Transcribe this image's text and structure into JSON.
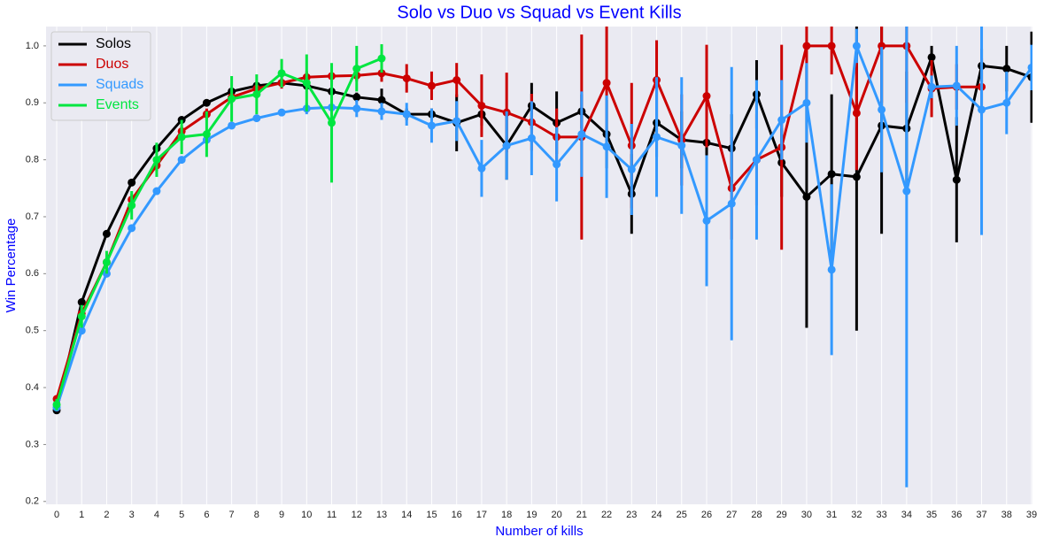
{
  "chart_data": {
    "type": "pointplot",
    "title": "Solo vs Duo vs Squad vs Event Kills",
    "x_label": "Number of kills",
    "y_label": "Win Percentage",
    "categories": [
      "0",
      "1",
      "2",
      "3",
      "4",
      "5",
      "6",
      "7",
      "8",
      "9",
      "10",
      "11",
      "12",
      "13",
      "14",
      "15",
      "16",
      "17",
      "18",
      "19",
      "20",
      "21",
      "22",
      "23",
      "24",
      "25",
      "26",
      "27",
      "28",
      "29",
      "30",
      "31",
      "32",
      "33",
      "34",
      "35",
      "36",
      "37",
      "38",
      "39"
    ],
    "ylim": [
      0.195,
      1.034
    ],
    "yticks": [
      0.2,
      0.3,
      0.4,
      0.5,
      0.6,
      0.7,
      0.8,
      0.9,
      {
        "value": 1,
        "label": "1.0"
      }
    ],
    "grid": "x",
    "legend": "upper left",
    "series": [
      {
        "name": "Solos",
        "color": "#000000",
        "values": [
          0.36,
          0.55,
          0.67,
          0.76,
          0.82,
          0.87,
          0.9,
          0.92,
          0.93,
          0.935,
          0.93,
          0.92,
          0.91,
          0.905,
          0.88,
          0.88,
          0.865,
          0.88,
          0.825,
          0.895,
          0.865,
          0.885,
          0.845,
          0.74,
          0.865,
          0.835,
          0.83,
          0.82,
          0.915,
          0.795,
          0.735,
          0.775,
          0.77,
          0.86,
          0.855,
          0.98,
          0.765,
          0.965,
          0.96,
          0.945
        ],
        "errors": [
          0.005,
          0.005,
          0.005,
          0.005,
          0.005,
          0.005,
          0.005,
          0.005,
          0.005,
          0.005,
          0.005,
          0.005,
          0.008,
          0.02,
          0.01,
          0.01,
          0.05,
          0.02,
          0.06,
          0.04,
          0.055,
          0.03,
          0.06,
          0.07,
          0.06,
          0.05,
          0.06,
          0.06,
          0.06,
          0.06,
          0.23,
          0.14,
          0.27,
          0.19,
          0.1,
          0.02,
          0.11,
          0.03,
          0.04,
          0.08
        ]
      },
      {
        "name": "Duos",
        "color": "#cc0000",
        "values": [
          0.38,
          0.53,
          0.62,
          0.73,
          0.79,
          0.85,
          0.88,
          0.91,
          0.925,
          0.935,
          0.945,
          0.947,
          0.948,
          0.952,
          0.943,
          0.93,
          0.94,
          0.895,
          0.883,
          0.866,
          0.84,
          0.84,
          0.935,
          0.825,
          0.94,
          0.835,
          0.912,
          0.75,
          0.8,
          0.822,
          1.0,
          1.0,
          0.882,
          1.0,
          1.0,
          0.925,
          0.928,
          0.928,
          null,
          null
        ],
        "errors": [
          0.005,
          0.01,
          0.01,
          0.01,
          0.01,
          0.01,
          0.01,
          0.01,
          0.01,
          0.01,
          0.01,
          0.01,
          0.01,
          0.015,
          0.025,
          0.025,
          0.03,
          0.055,
          0.07,
          0.05,
          0.05,
          0.18,
          0.1,
          0.11,
          0.07,
          0.08,
          0.09,
          0.09,
          0.08,
          0.18,
          0.1,
          0.05,
          0.1,
          0.1,
          0.1,
          0.05,
          0.04,
          0.05,
          null,
          null
        ]
      },
      {
        "name": "Squads",
        "color": "#3399ff",
        "values": [
          0.365,
          0.5,
          0.6,
          0.68,
          0.745,
          0.8,
          0.835,
          0.86,
          0.873,
          0.883,
          0.89,
          0.892,
          0.89,
          0.885,
          0.88,
          0.86,
          0.868,
          0.785,
          0.825,
          0.838,
          0.792,
          0.845,
          0.823,
          0.783,
          0.84,
          0.825,
          0.693,
          0.723,
          0.8,
          0.87,
          0.9,
          0.607,
          1.0,
          0.888,
          0.745,
          0.928,
          0.93,
          0.888,
          0.9,
          0.962
        ],
        "errors": [
          0.005,
          0.005,
          0.005,
          0.005,
          0.005,
          0.005,
          0.005,
          0.005,
          0.005,
          0.005,
          0.01,
          0.01,
          0.015,
          0.015,
          0.02,
          0.03,
          0.035,
          0.05,
          0.06,
          0.065,
          0.065,
          0.075,
          0.09,
          0.08,
          0.105,
          0.12,
          0.115,
          0.24,
          0.14,
          0.07,
          0.07,
          0.15,
          0.03,
          0.11,
          0.52,
          0.02,
          0.07,
          0.22,
          0.055,
          0.04
        ]
      },
      {
        "name": "Events",
        "color": "#00e640",
        "values": [
          0.37,
          0.525,
          0.62,
          0.72,
          0.8,
          0.84,
          0.845,
          0.907,
          0.915,
          0.952,
          0.935,
          0.865,
          0.96,
          0.978,
          null,
          null,
          null,
          null,
          null,
          null,
          null,
          null,
          null,
          null,
          null,
          null,
          null,
          null,
          null,
          null,
          null,
          null,
          null,
          null,
          null,
          null,
          null,
          null,
          null,
          null
        ],
        "errors": [
          0.01,
          0.02,
          0.02,
          0.025,
          0.03,
          0.03,
          0.04,
          0.04,
          0.035,
          0.025,
          0.05,
          0.105,
          0.04,
          0.025,
          null,
          null,
          null,
          null,
          null,
          null,
          null,
          null,
          null,
          null,
          null,
          null,
          null,
          null,
          null,
          null,
          null,
          null,
          null,
          null,
          null,
          null,
          null,
          null,
          null,
          null
        ]
      }
    ]
  }
}
